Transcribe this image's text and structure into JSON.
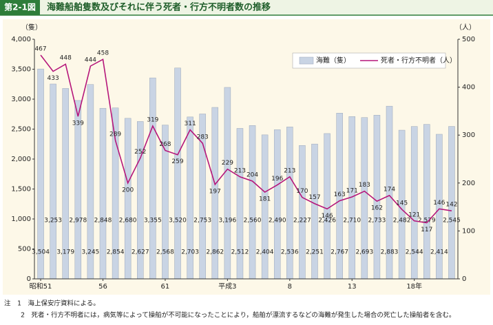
{
  "chart_data": {
    "type": "combo",
    "figure_label": "第2-1図",
    "title": "海難船舶隻数及びそれに伴う死者・行方不明者数の推移",
    "y_unit": "（隻）",
    "y2_unit": "（人）",
    "categories": [
      "昭和51",
      null,
      null,
      null,
      null,
      "56",
      null,
      null,
      null,
      null,
      "61",
      null,
      null,
      null,
      null,
      "平成3",
      null,
      null,
      null,
      null,
      "8",
      null,
      null,
      null,
      null,
      "13",
      null,
      null,
      null,
      null,
      "18年",
      null,
      null,
      null
    ],
    "series": [
      {
        "name": "海難（隻）",
        "type": "bar",
        "axis": "y",
        "color": "#c9d4e4",
        "values": [
          3504,
          3253,
          3179,
          2978,
          3245,
          2848,
          2854,
          2680,
          2627,
          3355,
          2568,
          3520,
          2703,
          2753,
          2862,
          3196,
          2512,
          2560,
          2404,
          2490,
          2536,
          2227,
          2251,
          2426,
          2767,
          2710,
          2693,
          2733,
          2883,
          2482,
          2544,
          2579,
          2414,
          2545
        ],
        "value_labels": [
          "3,504",
          "3,253",
          "3,179",
          "2,978",
          "3,245",
          "2,848",
          "2,854",
          "2,680",
          "2,627",
          "3,355",
          "2,568",
          "3,520",
          "2,703",
          "2,753",
          "2,862",
          "3,196",
          "2,512",
          "2,560",
          "2,404",
          "2,490",
          "2,536",
          "2,227",
          "2,251",
          "2,426",
          "2,767",
          "2,710",
          "2,693",
          "2,733",
          "2,883",
          "2,482",
          "2,544",
          "2,579",
          "2,414",
          "2,545"
        ]
      },
      {
        "name": "死者・行方不明者（人）",
        "type": "line",
        "axis": "y2",
        "color": "#b5157a",
        "values": [
          467,
          433,
          448,
          339,
          444,
          458,
          289,
          200,
          252,
          319,
          268,
          259,
          311,
          283,
          197,
          229,
          213,
          204,
          181,
          196,
          213,
          170,
          157,
          146,
          163,
          171,
          183,
          162,
          174,
          145,
          121,
          117,
          146,
          142
        ]
      }
    ],
    "ylim": [
      0,
      4000
    ],
    "yticks": [
      0,
      500,
      {
        "value": 1000,
        "label": "1,000"
      },
      {
        "value": 1500,
        "label": "1,500"
      },
      {
        "value": 2000,
        "label": "2,000"
      },
      {
        "value": 2500,
        "label": "2,500"
      },
      {
        "value": 3000,
        "label": "3,000"
      },
      {
        "value": 3500,
        "label": "3,500"
      },
      {
        "value": 4000,
        "label": "4,000"
      }
    ],
    "y2lim": [
      0,
      500
    ],
    "y2ticks": [
      0,
      100,
      200,
      300,
      400,
      500
    ],
    "legend": "top-right",
    "notes": [
      "注　1　海上保安庁資料による。",
      "2　死者・行方不明者には，病気等によって操船が不可能になったことにより，船舶が漂流するなどの海難が発生した場合の死亡した操船者を含む。"
    ]
  }
}
